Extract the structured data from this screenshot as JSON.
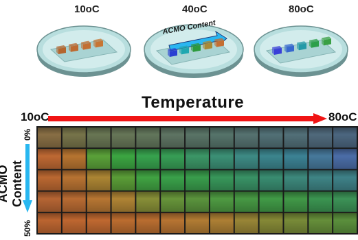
{
  "dishes": [
    {
      "label": "10oC",
      "gel_colors": [
        "#b4652e",
        "#bd6a31",
        "#c26f33",
        "#c77533"
      ]
    },
    {
      "label": "40oC",
      "gel_colors": [
        "#2a3fd2",
        "#1fa7b0",
        "#2c9a3d",
        "#a88a37",
        "#c56e32"
      ]
    },
    {
      "label": "80oC",
      "gel_colors": [
        "#3a3fd8",
        "#3667cf",
        "#239aa8",
        "#2c9f4a",
        "#3aa045"
      ]
    }
  ],
  "arrow_text": "ACMO Content",
  "title": "Temperature",
  "axis": {
    "start": "10oC",
    "end": "80oC"
  },
  "side": {
    "label": "ACMO Content",
    "top": "0%",
    "bottom": "50%"
  },
  "colors": {
    "red_arrow": "#f01414",
    "blue_arrow": "#28b7f0",
    "dish_fill": "#b8dede",
    "dish_edge": "#6c9292"
  },
  "grid": {
    "columns": 13,
    "rows": [
      [
        "#8f7448",
        "#7d7a4e",
        "#6e7c58",
        "#6c7c5c",
        "#677c60",
        "#637a68",
        "#5e7a6c",
        "#5a7a70",
        "#5a7876",
        "#56767c",
        "#56757e",
        "#546f82",
        "#506c86"
      ],
      [
        "#c86e36",
        "#bf7a33",
        "#5fa93c",
        "#3fae45",
        "#3aab52",
        "#3aa65a",
        "#3f9e6c",
        "#3f987c",
        "#41928c",
        "#3f8c95",
        "#3f899c",
        "#4a7fa3",
        "#4f73b0"
      ],
      [
        "#c46d34",
        "#c17935",
        "#b58c36",
        "#5fa53a",
        "#44ab46",
        "#3daa4e",
        "#3ca550",
        "#3b9f5f",
        "#3c9a6b",
        "#3c9477",
        "#409083",
        "#428b8c",
        "#42888f"
      ],
      [
        "#be6a36",
        "#c17035",
        "#c07c35",
        "#b88a37",
        "#8e963a",
        "#6c9c3d",
        "#5f9b40",
        "#52a245",
        "#4aa047",
        "#44a24a",
        "#44a04b",
        "#3e9c55",
        "#3f9a5b"
      ],
      [
        "#c56a33",
        "#c86c33",
        "#c96e33",
        "#c47232",
        "#c27333",
        "#c07a35",
        "#ba8236",
        "#b58637",
        "#a08c39",
        "#8c9039",
        "#7e923b",
        "#6b963d",
        "#5f973f"
      ]
    ]
  }
}
